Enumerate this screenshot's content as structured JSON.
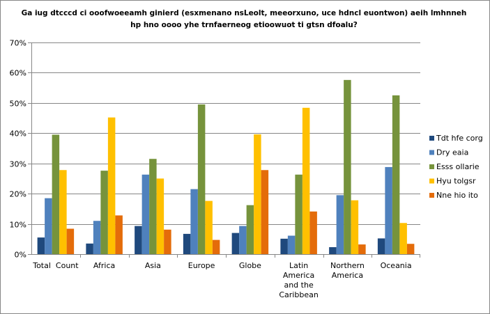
{
  "chart_data": {
    "type": "bar",
    "title_line1": "Ga iug dtcccd ci ooofwoeeamh ginierd (esxmenano nsLeolt, meeorxuno, uce hdncl euontwon) aeih lmhnneh",
    "title_line2": "hp hno oooo yhe trnfaerneog etioowuot ti gtsn dfoalu?",
    "categories": [
      [
        "Total  Count"
      ],
      [
        "Africa"
      ],
      [
        "Asia"
      ],
      [
        "Europe"
      ],
      [
        "Globe"
      ],
      [
        "Latin",
        "America",
        "and the",
        "Caribbean"
      ],
      [
        "Northern",
        "America"
      ],
      [
        "Oceania"
      ]
    ],
    "yticks": [
      "0%",
      "10%",
      "20%",
      "30%",
      "40%",
      "50%",
      "60%",
      "70%"
    ],
    "ylim": [
      0,
      70
    ],
    "grid": true,
    "legend_position": "right",
    "series": [
      {
        "name": "Tdt hfe corg",
        "color": "#1f497d",
        "values": [
          5.5,
          3.5,
          9.3,
          6.7,
          7.0,
          5.1,
          2.3,
          5.2
        ]
      },
      {
        "name": "Dry eaia",
        "color": "#4f81bd",
        "values": [
          18.5,
          11.0,
          26.3,
          21.5,
          9.3,
          6.1,
          19.5,
          28.8
        ]
      },
      {
        "name": "Esss ollarie",
        "color": "#76933c",
        "values": [
          39.5,
          27.6,
          31.5,
          49.5,
          16.2,
          26.3,
          57.6,
          52.5
        ]
      },
      {
        "name": "Hyu tolgsr",
        "color": "#ffc000",
        "values": [
          27.8,
          45.2,
          25.0,
          17.6,
          39.6,
          48.4,
          17.8,
          10.3
        ]
      },
      {
        "name": "Nne hio ito",
        "color": "#e46c0a",
        "values": [
          8.4,
          12.8,
          8.1,
          4.7,
          27.8,
          14.1,
          3.2,
          3.4
        ]
      }
    ]
  }
}
